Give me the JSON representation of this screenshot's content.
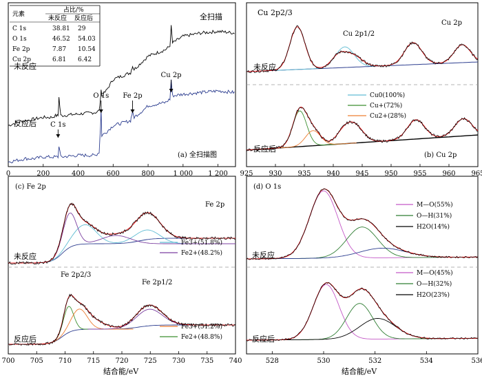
{
  "colors": {
    "black": "#000000",
    "navy": "#2c3d8f",
    "red": "#e31a1c",
    "cyan": "#5fbcd3",
    "green": "#3b8e2f",
    "orange": "#ed7d31",
    "purple": "#8e44ad",
    "magenta": "#c357c6",
    "greenDark": "#2e7d32",
    "dash": "#9a9a9a"
  },
  "chart_data": [
    {
      "type": "line",
      "panel_label": "(a) 全扫描图",
      "xlim": [
        0,
        1300
      ],
      "xticks": [
        "0",
        "200",
        "400",
        "600",
        "800",
        "1 000",
        "1 200"
      ],
      "series": [
        {
          "name": "未反应",
          "label": "未反应",
          "x": [
            0,
            50,
            100,
            150,
            200,
            250,
            270,
            285,
            290,
            300,
            400,
            500,
            520,
            528,
            531,
            535,
            560,
            600,
            700,
            705,
            711,
            720,
            780,
            800,
            900,
            925,
            932,
            940,
            1000,
            1100,
            1200,
            1300
          ],
          "y": [
            0.24,
            0.26,
            0.27,
            0.28,
            0.29,
            0.29,
            0.3,
            0.3,
            0.41,
            0.3,
            0.31,
            0.32,
            0.33,
            0.4,
            0.46,
            0.42,
            0.45,
            0.52,
            0.56,
            0.58,
            0.6,
            0.58,
            0.64,
            0.66,
            0.7,
            0.72,
            0.84,
            0.74,
            0.78,
            0.8,
            0.81,
            0.8
          ]
        },
        {
          "name": "反应后",
          "label": "反应后",
          "x": [
            0,
            50,
            100,
            150,
            200,
            250,
            270,
            285,
            290,
            300,
            400,
            500,
            520,
            528,
            531,
            535,
            560,
            600,
            700,
            705,
            711,
            720,
            780,
            800,
            900,
            925,
            932,
            940,
            1000,
            1100,
            1200,
            1300
          ],
          "y": [
            0.02,
            0.03,
            0.04,
            0.04,
            0.05,
            0.05,
            0.05,
            0.05,
            0.12,
            0.05,
            0.06,
            0.06,
            0.08,
            0.24,
            0.34,
            0.18,
            0.2,
            0.24,
            0.27,
            0.3,
            0.32,
            0.29,
            0.34,
            0.36,
            0.38,
            0.4,
            0.52,
            0.42,
            0.43,
            0.44,
            0.45,
            0.44
          ]
        }
      ],
      "annotations": [
        {
          "label": "C 1s",
          "x": 285
        },
        {
          "label": "O 1s",
          "x": 531
        },
        {
          "label": "Fe 2p",
          "x": 711
        },
        {
          "label": "Cu 2p",
          "x": 932
        }
      ],
      "corner_label": "全扫描",
      "table": {
        "header_row1": [
          "元素",
          "占比/%"
        ],
        "header_row2": [
          "未反应",
          "反应后"
        ],
        "rows": [
          [
            "C 1s",
            "38.81",
            "29"
          ],
          [
            "O 1s",
            "46.52",
            "54.03"
          ],
          [
            "Fe 2p",
            "7.87",
            "10.54"
          ],
          [
            "Cu 2p",
            "6.81",
            "6.42"
          ]
        ]
      }
    },
    {
      "type": "line",
      "panel_label": "(b)  Cu 2p",
      "xlim": [
        925,
        965
      ],
      "xticks": [
        "925",
        "930",
        "935",
        "940",
        "945",
        "950",
        "955",
        "960",
        "965"
      ],
      "series_labels": [
        "未反应",
        "反应后"
      ],
      "peak_labels": [
        "Cu 2p2/3",
        "Cu 2p1/2",
        "Cu 2p"
      ],
      "legend": [
        "Cu0(100%)",
        "Cu+(72%)",
        "Cu2+(28%)"
      ]
    },
    {
      "type": "line",
      "panel_label": "(c)  Fe 2p",
      "xlim": [
        700,
        740
      ],
      "xticks": [
        "700",
        "705",
        "710",
        "715",
        "720",
        "725",
        "730",
        "735",
        "740"
      ],
      "xlabel": "结合能/eV",
      "series_labels": [
        "未反应",
        "反应后"
      ],
      "peak_labels": [
        "Fe 2p",
        "Fe 2p2/3",
        "Fe 2p1/2"
      ],
      "legend_top": [
        "Fe3+(51.8%)",
        "Fe2+(48.2%)"
      ],
      "legend_bottom": [
        "Fe3+(51.2%)",
        "Fe2+(48.8%)"
      ]
    },
    {
      "type": "line",
      "panel_label": "(d)  O 1s",
      "xlim": [
        527,
        536
      ],
      "xticks": [
        "528",
        "530",
        "532",
        "534",
        "536"
      ],
      "xlabel": "结合能/eV",
      "series_labels": [
        "未反应",
        "反应后"
      ],
      "legend_top": [
        "M—O(55%)",
        "O—H(31%)",
        "H2O(14%)"
      ],
      "legend_bottom": [
        "M—O(45%)",
        "O—H(32%)",
        "H2O(23%)"
      ]
    }
  ]
}
